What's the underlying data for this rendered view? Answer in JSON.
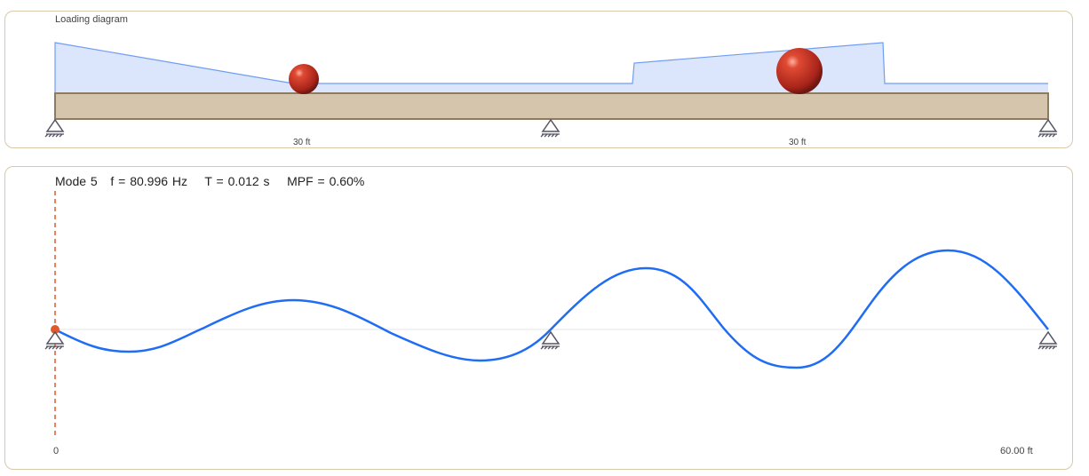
{
  "loading": {
    "title": "Loading diagram",
    "span_labels": [
      "30 ft",
      "30 ft"
    ]
  },
  "mode": {
    "mode_label": "Mode 5",
    "frequency": "f = 80.996 Hz",
    "period": "T = 0.012 s",
    "mpf": "MPF = 0.60%",
    "x_start": "0",
    "x_end": "60.00 ft"
  },
  "colors": {
    "beam": "#d5c5ad",
    "load": "#dbe6fc",
    "load_line": "#6f9cf5",
    "mode_line": "#1f6cf5",
    "marker": "#e0592a"
  }
}
